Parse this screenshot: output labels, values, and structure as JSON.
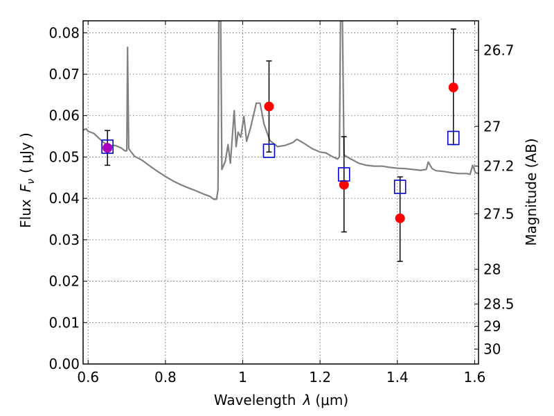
{
  "chart_data": {
    "type": "scatter",
    "xlabel": "Wavelength",
    "xlabel_symbol": "λ",
    "xlabel_unit": "(μm)",
    "ylabel": "Flux",
    "ylabel_symbol": "F",
    "ylabel_subscript": "ν",
    "ylabel_unit": "( μJy )",
    "y2label": "Magnitude (AB)",
    "xlim": [
      0.587,
      1.61
    ],
    "ylim": [
      0.0,
      0.0829
    ],
    "xticks": [
      0.6,
      0.8,
      1.0,
      1.2,
      1.4,
      1.6
    ],
    "xtick_labels": [
      "0.6",
      "0.8",
      "1",
      "1.2",
      "1.4",
      "1.6"
    ],
    "yticks": [
      0.0,
      0.01,
      0.02,
      0.03,
      0.04,
      0.05,
      0.06,
      0.07,
      0.08
    ],
    "ytick_labels": [
      "0.00",
      "0.01",
      "0.02",
      "0.03",
      "0.04",
      "0.05",
      "0.06",
      "0.07",
      "0.08"
    ],
    "y2ticks": [
      {
        "label": "26.7",
        "flux": 0.0758
      },
      {
        "label": "27",
        "flux": 0.0574
      },
      {
        "label": "27.2",
        "flux": 0.0478
      },
      {
        "label": "27.5",
        "flux": 0.0363
      },
      {
        "label": "28",
        "flux": 0.0229
      },
      {
        "label": "28.5",
        "flux": 0.0145
      },
      {
        "label": "29",
        "flux": 0.0091
      },
      {
        "label": "30",
        "flux": 0.0036
      }
    ],
    "grid": true,
    "series": [
      {
        "kind": "line",
        "color": "#808080",
        "points": [
          [
            0.587,
            0.0565
          ],
          [
            0.595,
            0.0568
          ],
          [
            0.6,
            0.0562
          ],
          [
            0.615,
            0.0557
          ],
          [
            0.625,
            0.0548
          ],
          [
            0.64,
            0.0535
          ],
          [
            0.655,
            0.0527
          ],
          [
            0.67,
            0.0528
          ],
          [
            0.685,
            0.0522
          ],
          [
            0.695,
            0.0515
          ],
          [
            0.7,
            0.0515
          ],
          [
            0.702,
            0.0765
          ],
          [
            0.705,
            0.052
          ],
          [
            0.72,
            0.0502
          ],
          [
            0.74,
            0.0492
          ],
          [
            0.76,
            0.0478
          ],
          [
            0.78,
            0.0465
          ],
          [
            0.8,
            0.0453
          ],
          [
            0.82,
            0.0442
          ],
          [
            0.84,
            0.0433
          ],
          [
            0.86,
            0.0425
          ],
          [
            0.88,
            0.0418
          ],
          [
            0.9,
            0.041
          ],
          [
            0.915,
            0.0405
          ],
          [
            0.925,
            0.0398
          ],
          [
            0.932,
            0.0398
          ],
          [
            0.936,
            0.042
          ],
          [
            0.938,
            0.0829
          ],
          [
            0.943,
            0.0829
          ],
          [
            0.946,
            0.047
          ],
          [
            0.955,
            0.049
          ],
          [
            0.962,
            0.053
          ],
          [
            0.968,
            0.0485
          ],
          [
            0.978,
            0.0612
          ],
          [
            0.983,
            0.0525
          ],
          [
            0.988,
            0.056
          ],
          [
            0.995,
            0.0548
          ],
          [
            1.003,
            0.0598
          ],
          [
            1.01,
            0.0538
          ],
          [
            1.02,
            0.057
          ],
          [
            1.035,
            0.063
          ],
          [
            1.045,
            0.063
          ],
          [
            1.055,
            0.058
          ],
          [
            1.07,
            0.054
          ],
          [
            1.09,
            0.0525
          ],
          [
            1.11,
            0.0528
          ],
          [
            1.13,
            0.0535
          ],
          [
            1.14,
            0.0543
          ],
          [
            1.155,
            0.0535
          ],
          [
            1.18,
            0.052
          ],
          [
            1.2,
            0.0512
          ],
          [
            1.215,
            0.051
          ],
          [
            1.23,
            0.0502
          ],
          [
            1.245,
            0.0495
          ],
          [
            1.25,
            0.05
          ],
          [
            1.253,
            0.0829
          ],
          [
            1.258,
            0.0829
          ],
          [
            1.262,
            0.0505
          ],
          [
            1.28,
            0.0495
          ],
          [
            1.3,
            0.0485
          ],
          [
            1.32,
            0.048
          ],
          [
            1.34,
            0.0478
          ],
          [
            1.36,
            0.0478
          ],
          [
            1.38,
            0.0475
          ],
          [
            1.4,
            0.0473
          ],
          [
            1.42,
            0.0472
          ],
          [
            1.44,
            0.047
          ],
          [
            1.46,
            0.0468
          ],
          [
            1.475,
            0.047
          ],
          [
            1.48,
            0.0488
          ],
          [
            1.49,
            0.0472
          ],
          [
            1.5,
            0.0467
          ],
          [
            1.52,
            0.0465
          ],
          [
            1.54,
            0.0462
          ],
          [
            1.56,
            0.046
          ],
          [
            1.58,
            0.046
          ],
          [
            1.588,
            0.0458
          ],
          [
            1.595,
            0.048
          ],
          [
            1.602,
            0.0462
          ],
          [
            1.61,
            0.046
          ]
        ]
      },
      {
        "kind": "errorbar",
        "color": "#000000",
        "points": [
          {
            "x": 0.65,
            "ylo": 0.048,
            "yhi": 0.0564
          },
          {
            "x": 1.068,
            "ylo": 0.0512,
            "yhi": 0.0732
          },
          {
            "x": 1.262,
            "ylo": 0.0319,
            "yhi": 0.0549
          },
          {
            "x": 1.407,
            "ylo": 0.0248,
            "yhi": 0.0452
          },
          {
            "x": 1.545,
            "ylo": 0.053,
            "yhi": 0.0809
          }
        ]
      },
      {
        "kind": "markers",
        "marker": "circle",
        "color": "#ff0000",
        "points": [
          [
            1.068,
            0.0622
          ],
          [
            1.262,
            0.0433
          ],
          [
            1.407,
            0.0352
          ],
          [
            1.545,
            0.0668
          ]
        ]
      },
      {
        "kind": "markers",
        "marker": "circle",
        "color": "#aa00bb",
        "points": [
          [
            0.65,
            0.0522
          ]
        ]
      },
      {
        "kind": "markers",
        "marker": "square",
        "color": "#0000cc",
        "points": [
          [
            0.65,
            0.0525
          ],
          [
            1.068,
            0.0515
          ],
          [
            1.262,
            0.0458
          ],
          [
            1.407,
            0.0428
          ],
          [
            1.545,
            0.0546
          ]
        ]
      }
    ]
  }
}
